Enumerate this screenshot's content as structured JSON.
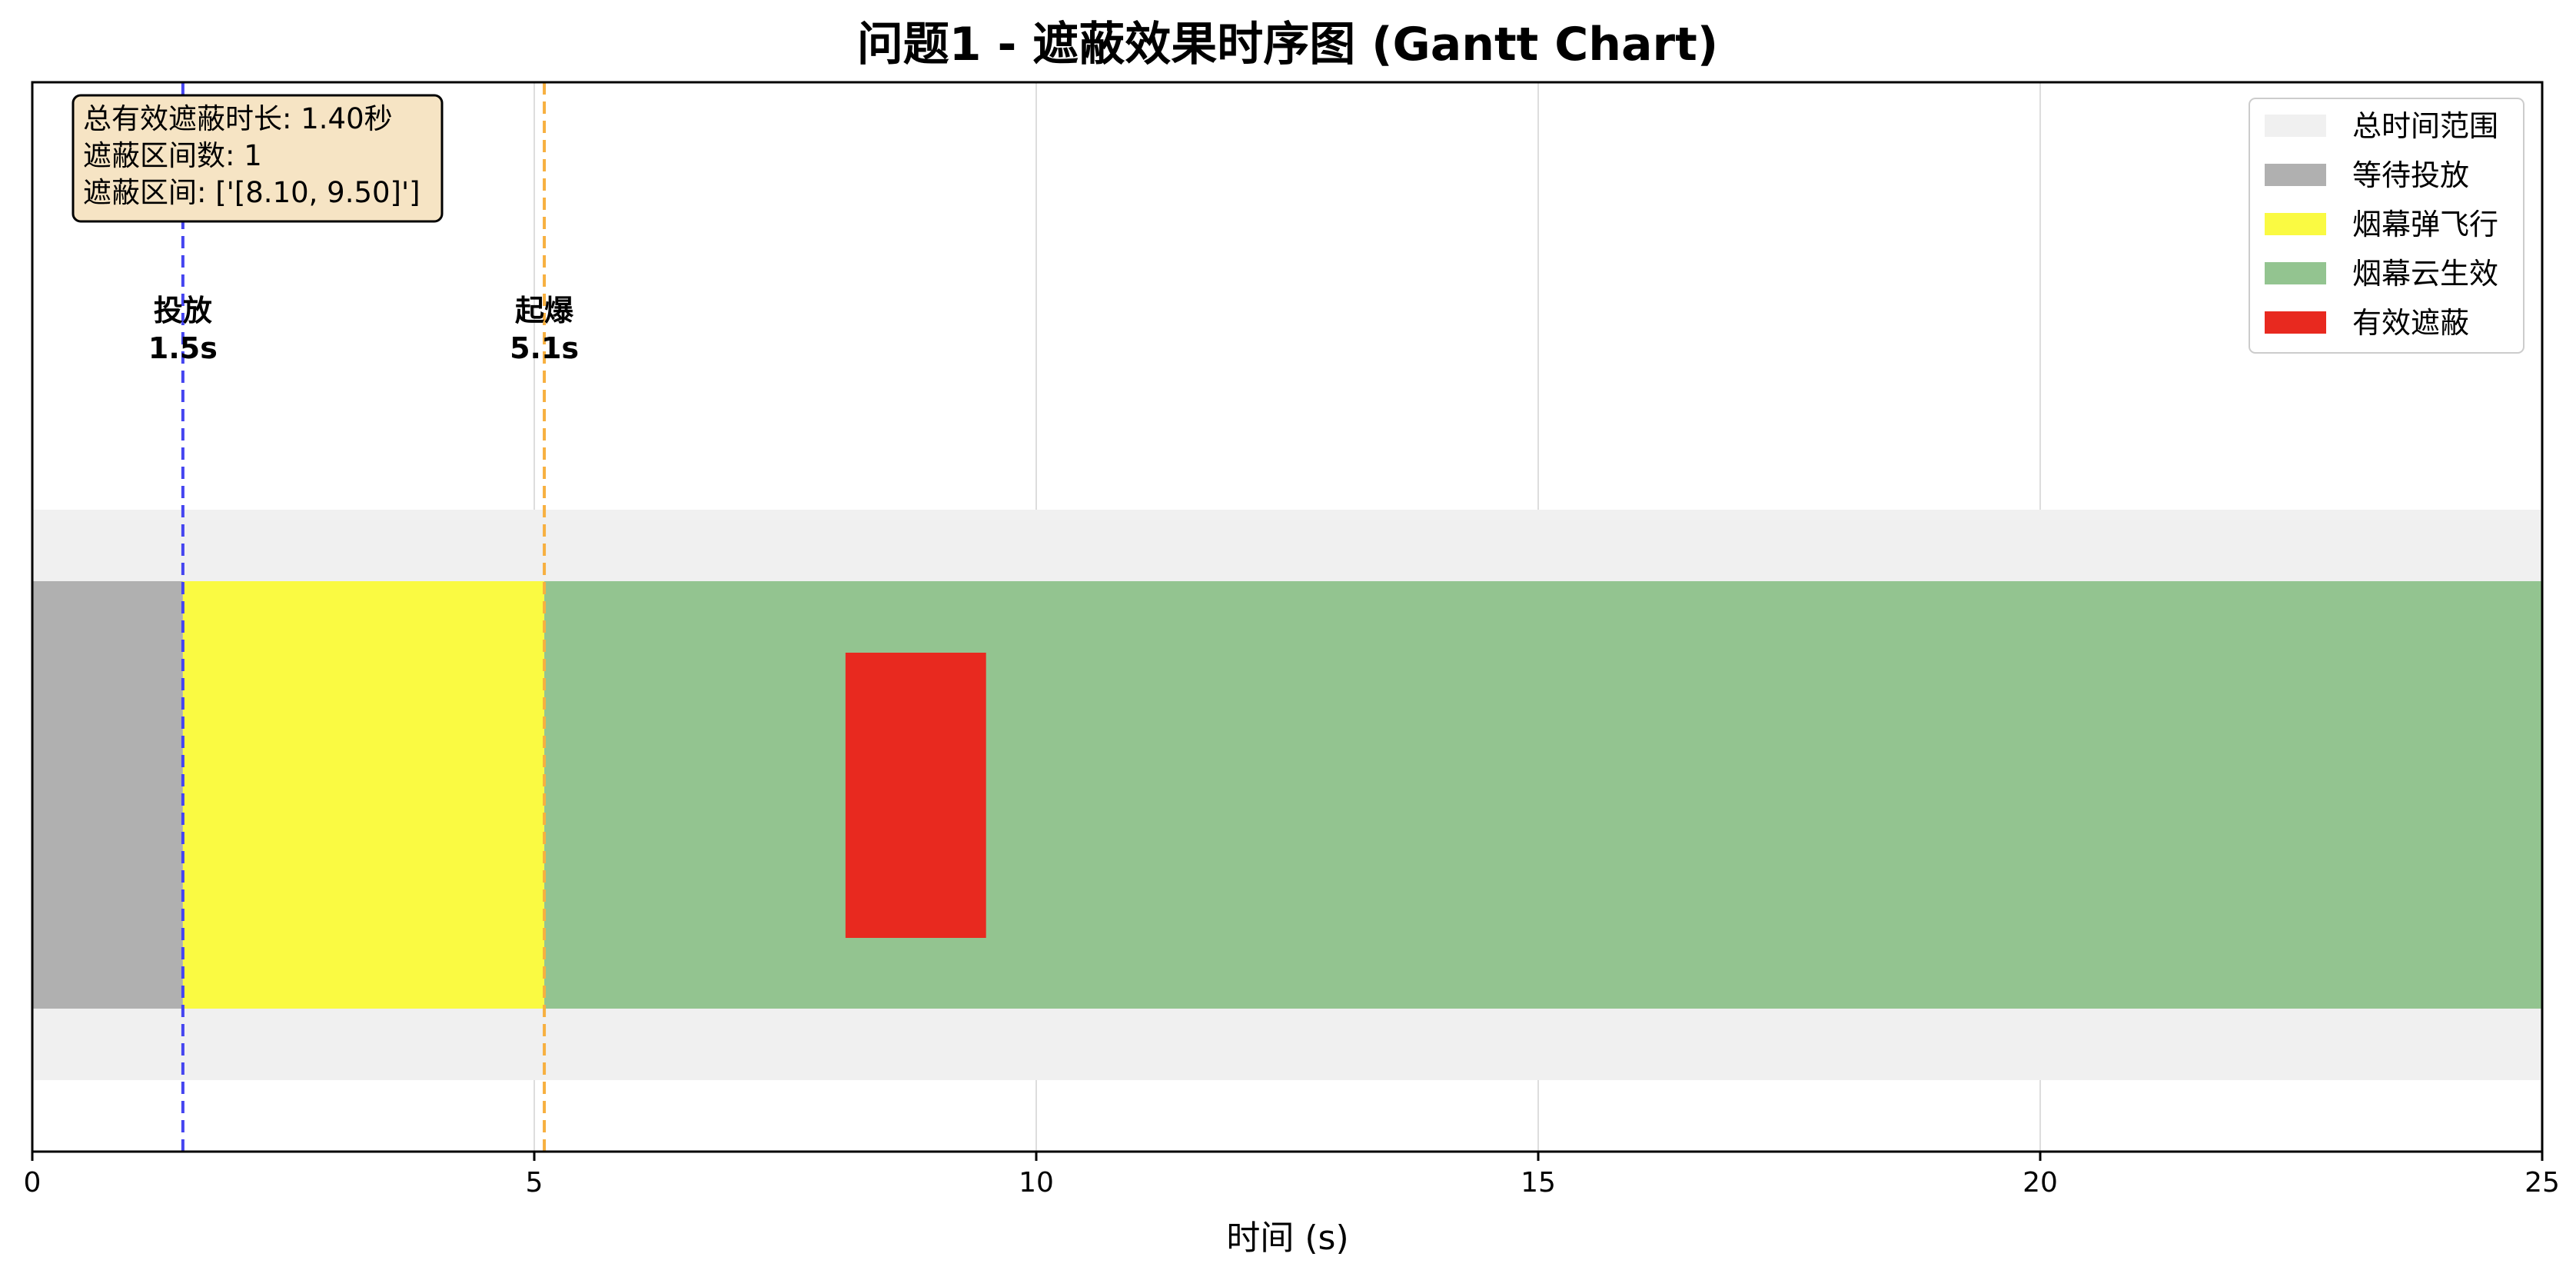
{
  "chart_data": {
    "type": "bar",
    "title": "问题1 - 遮蔽效果时序图 (Gantt Chart)",
    "xlabel": "时间 (s)",
    "ylabel": "",
    "xlim": [
      0,
      25
    ],
    "xticks": [
      0,
      5,
      10,
      15,
      20,
      25
    ],
    "grid": "vertical",
    "legend_position": "top-right",
    "series": [
      {
        "name": "总时间范围",
        "start": 0,
        "end": 25,
        "color": "#f0f0f0",
        "band": "outer"
      },
      {
        "name": "等待投放",
        "start": 0,
        "end": 1.5,
        "color": "#b0b0b0",
        "band": "middle"
      },
      {
        "name": "烟幕弹飞行",
        "start": 1.5,
        "end": 5.1,
        "color": "#fafa42",
        "band": "middle"
      },
      {
        "name": "烟幕云生效",
        "start": 5.1,
        "end": 25,
        "color": "#93c490",
        "band": "middle"
      },
      {
        "name": "有效遮蔽",
        "start": 8.1,
        "end": 9.5,
        "color": "#e8291f",
        "band": "inner"
      }
    ],
    "events": [
      {
        "name": "投放",
        "label": "1.5s",
        "x": 1.5,
        "color": "#4545f0"
      },
      {
        "name": "起爆",
        "label": "5.1s",
        "x": 5.1,
        "color": "#f7b040"
      }
    ],
    "info_box": {
      "lines": [
        "总有效遮蔽时长: 1.40秒",
        "遮蔽区间数: 1",
        "遮蔽区间: ['[8.10, 9.50]']"
      ],
      "background": "#f6e4c4"
    }
  }
}
